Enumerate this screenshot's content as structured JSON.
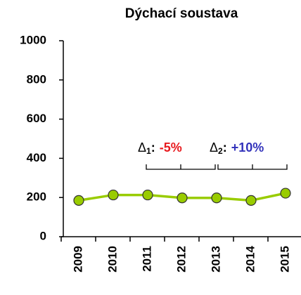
{
  "chart_data": {
    "type": "line",
    "title": "Dýchací soustava",
    "categories": [
      "2009",
      "2010",
      "2011",
      "2012",
      "2013",
      "2014",
      "2015"
    ],
    "series": [
      {
        "name": "Dýchací soustava",
        "color": "#99cc00",
        "values": [
          185,
          213,
          213,
          198,
          198,
          185,
          222
        ]
      }
    ],
    "ylim": [
      0,
      1000
    ],
    "yticks": [
      0,
      200,
      400,
      600,
      800,
      1000
    ],
    "annotations": [
      {
        "symbol": "Δ",
        "subscript": "1",
        "colon": ":",
        "text": "-5%",
        "color": "#e8191d"
      },
      {
        "symbol": "Δ",
        "subscript": "2",
        "colon": ":",
        "text": "+10%",
        "color": "#3333bb"
      }
    ]
  }
}
